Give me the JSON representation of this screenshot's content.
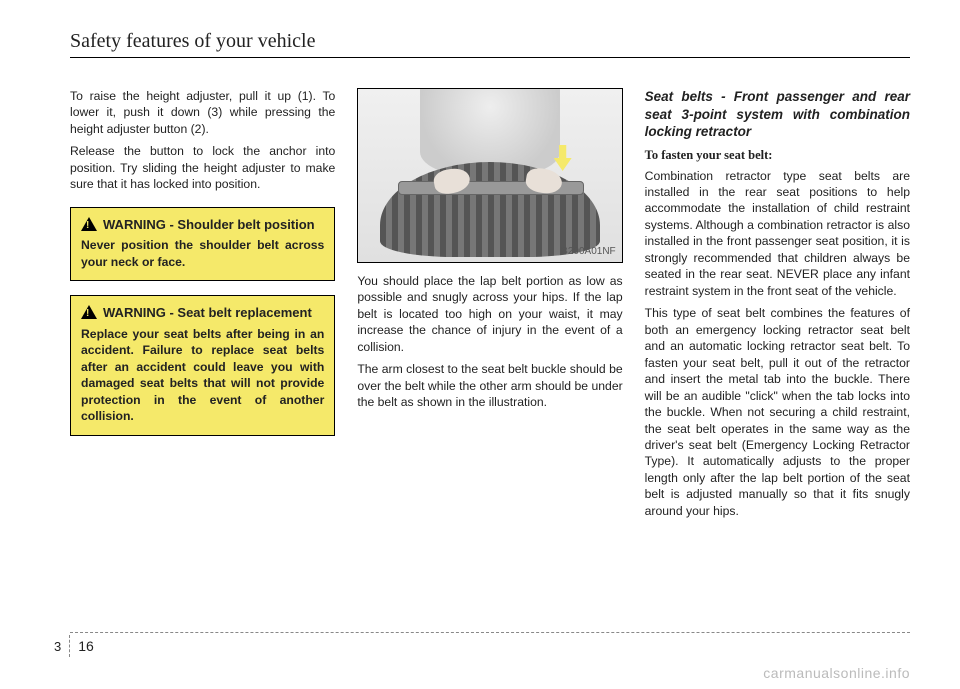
{
  "header": {
    "title": "Safety features of your vehicle"
  },
  "col1": {
    "p1": "To raise the height adjuster, pull it up (1). To lower it, push it down (3) while pressing the height adjuster button (2).",
    "p2": "Release the button to lock the anchor into position. Try sliding the height adjuster to make sure that it has locked into position.",
    "warning1": {
      "label": "WARNING -",
      "subtitle": "Shoulder belt position",
      "body": "Never position the shoulder belt across your neck or face."
    },
    "warning2": {
      "label": "WARNING -",
      "subtitle": "Seat belt replacement",
      "body": "Replace your seat belts after being in an accident. Failure to replace seat belts after an accident could leave you with damaged seat belts that will not provide protection in the event of another collision."
    }
  },
  "col2": {
    "figure_code": "B200A01NF",
    "p1": "You should place the lap belt portion as low as possible and snugly across your hips. If the lap belt is located too high on your waist, it may increase the chance of injury in the event of a collision.",
    "p2": "The arm closest to the seat belt buckle should be over the belt while the other arm should be under the belt as shown in the illustration."
  },
  "col3": {
    "section_title": "Seat belts - Front passenger and rear seat 3-point system with combination locking retractor",
    "sub": "To fasten your seat belt:",
    "p1": "Combination retractor type seat belts are installed in the rear seat positions to help accommodate the installation of child restraint systems. Although a combination retractor is also installed in the front passenger seat position, it is strongly recommended that children always be seated in the rear seat. NEVER place any infant restraint system in the front seat of the vehicle.",
    "p2": "This type of seat belt combines the features of both an emergency locking retractor seat belt and an automatic locking retractor seat belt. To fasten your seat belt, pull it out of the retractor and insert the metal tab into the buckle. There will be an audible \"click\" when the tab locks into the buckle. When not securing a child restraint, the seat belt operates in the same way as the driver's seat belt (Emergency Locking Retractor Type). It automatically adjusts to the proper length only after the lap belt portion of the seat belt is adjusted manually so that it fits snugly around your hips."
  },
  "footer": {
    "chapter": "3",
    "page": "16",
    "watermark": "carmanualsonline.info"
  },
  "colors": {
    "warning_bg": "#f5e96a",
    "text": "#222222",
    "rule": "#000000",
    "dash": "#888888",
    "watermark": "#bbbbbb"
  }
}
